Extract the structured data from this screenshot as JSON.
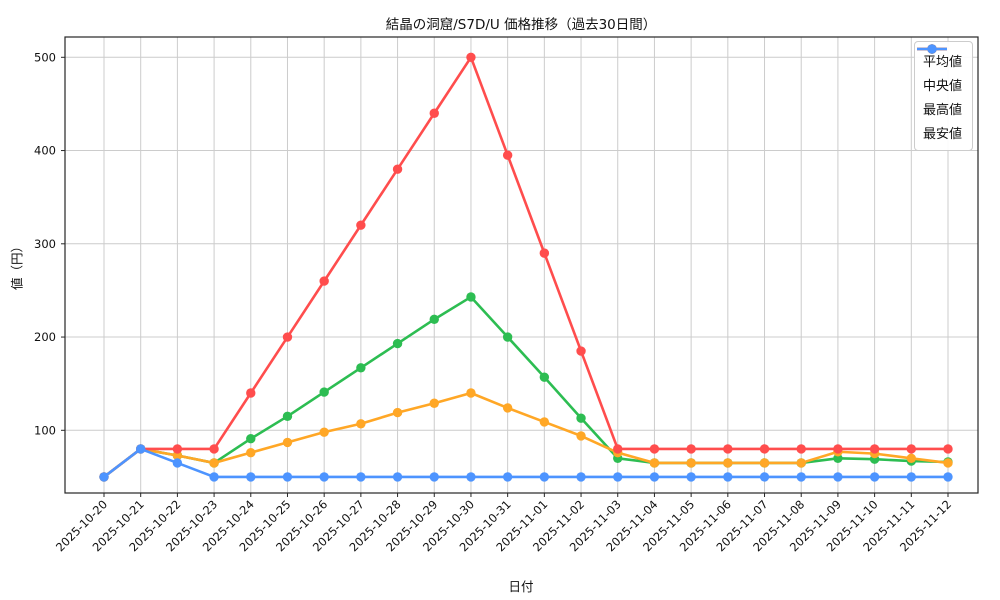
{
  "figure": {
    "title": "結晶の洞窟/S7D/U 価格推移（過去30日間）",
    "xlabel": "日付",
    "ylabel": "値（円）",
    "background_color": "#ffffff",
    "grid_color": "#cccccc",
    "axis_color": "#262626"
  },
  "chart_data": {
    "type": "line",
    "title": "結晶の洞窟/S7D/U 価格推移（過去30日間）",
    "xlabel": "日付",
    "ylabel": "値（円）",
    "grid": true,
    "legend_position": "upper right",
    "yticks": [
      100,
      200,
      300,
      400,
      500
    ],
    "ylim": [
      33,
      522
    ],
    "x": [
      "2025-10-20",
      "2025-10-21",
      "2025-10-22",
      "2025-10-23",
      "2025-10-24",
      "2025-10-25",
      "2025-10-26",
      "2025-10-27",
      "2025-10-28",
      "2025-10-29",
      "2025-10-30",
      "2025-10-31",
      "2025-11-01",
      "2025-11-02",
      "2025-11-03",
      "2025-11-04",
      "2025-11-05",
      "2025-11-06",
      "2025-11-07",
      "2025-11-08",
      "2025-11-09",
      "2025-11-10",
      "2025-11-11",
      "2025-11-12"
    ],
    "series": [
      {
        "id": "average",
        "name": "平均値",
        "color": "#2dbd52",
        "values": [
          50,
          80,
          73,
          65,
          91,
          115,
          141,
          167,
          193,
          219,
          243,
          200,
          157,
          113,
          70,
          65,
          65,
          65,
          65,
          65,
          70,
          69,
          67,
          66
        ]
      },
      {
        "id": "median",
        "name": "中央値",
        "color": "#ffa726",
        "values": [
          50,
          80,
          73,
          65,
          76,
          87,
          98,
          107,
          119,
          129,
          140,
          124,
          109,
          94,
          76,
          65,
          65,
          65,
          65,
          65,
          77,
          75,
          70,
          65
        ]
      },
      {
        "id": "highest",
        "name": "最高値",
        "color": "#ff4d4d",
        "values": [
          50,
          80,
          80,
          80,
          140,
          200,
          260,
          320,
          380,
          440,
          500,
          395,
          290,
          185,
          80,
          80,
          80,
          80,
          80,
          80,
          80,
          80,
          80,
          80
        ]
      },
      {
        "id": "lowest",
        "name": "最安値",
        "color": "#4d94ff",
        "values": [
          50,
          80,
          65,
          50,
          50,
          50,
          50,
          50,
          50,
          50,
          50,
          50,
          50,
          50,
          50,
          50,
          50,
          50,
          50,
          50,
          50,
          50,
          50,
          50
        ]
      }
    ]
  }
}
